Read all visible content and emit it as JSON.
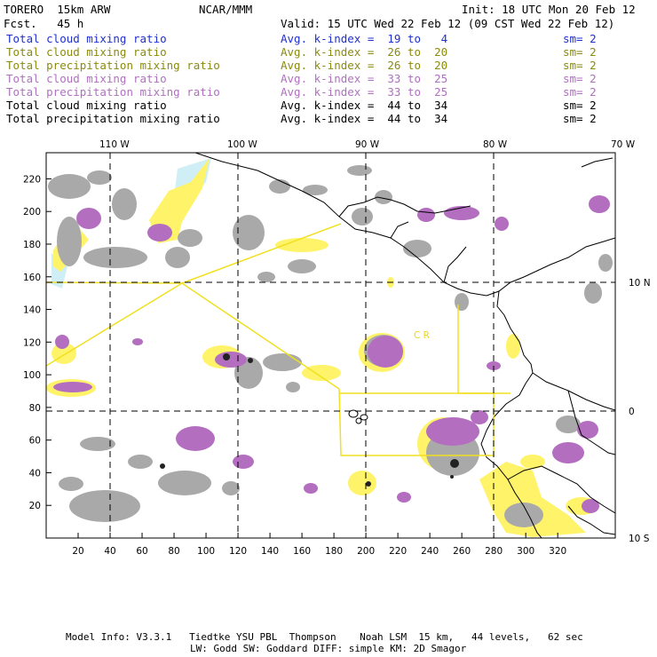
{
  "header": {
    "model": "TORERO  15km ARW",
    "fcst": "Fcst.   45 h",
    "center": "NCAR/MMM",
    "init": "Init: 18 UTC Mon 20 Feb 12",
    "valid": "Valid: 15 UTC Wed 22 Feb 12 (09 CST Wed 22 Feb 12)"
  },
  "legend": [
    {
      "field": "Total cloud mixing ratio",
      "index": "Avg. k-index =  19 to   4",
      "sm": "sm= 2",
      "color": "#1f2fd0"
    },
    {
      "field": "Total cloud mixing ratio",
      "index": "Avg. k-index =  26 to  20",
      "sm": "sm= 2",
      "color": "#8a8a10"
    },
    {
      "field": "Total precipitation mixing ratio",
      "index": "Avg. k-index =  26 to  20",
      "sm": "sm= 2",
      "color": "#8a8a10"
    },
    {
      "field": "Total cloud mixing ratio",
      "index": "Avg. k-index =  33 to  25",
      "sm": "sm= 2",
      "color": "#b070c0"
    },
    {
      "field": "Total precipitation mixing ratio",
      "index": "Avg. k-index =  33 to  25",
      "sm": "sm= 2",
      "color": "#b070c0"
    },
    {
      "field": "Total cloud mixing ratio",
      "index": "Avg. k-index =  44 to  34",
      "sm": "sm= 2",
      "color": "#000000"
    },
    {
      "field": "Total precipitation mixing ratio",
      "index": "Avg. k-index =  44 to  34",
      "sm": "sm= 2",
      "color": "#000000"
    }
  ],
  "map": {
    "lon_labels": [
      "110 W",
      "100 W",
      "90 W",
      "80 W",
      "70 W"
    ],
    "lat_labels": [
      "10 N",
      "0",
      "10 S"
    ],
    "x_ticks": [
      "20",
      "40",
      "60",
      "80",
      "100",
      "120",
      "140",
      "160",
      "180",
      "200",
      "220",
      "240",
      "260",
      "280",
      "300",
      "320"
    ],
    "y_ticks": [
      "20",
      "40",
      "60",
      "80",
      "100",
      "120",
      "140",
      "160",
      "180",
      "200",
      "220"
    ],
    "region_label": "C  R"
  },
  "footer": {
    "line1": "Model Info: V3.3.1   Tiedtke YSU PBL  Thompson    Noah LSM  15 km,   44 levels,   62 sec",
    "line2": "LW: Godd SW: Goddard DIFF: simple KM: 2D Smagor"
  }
}
